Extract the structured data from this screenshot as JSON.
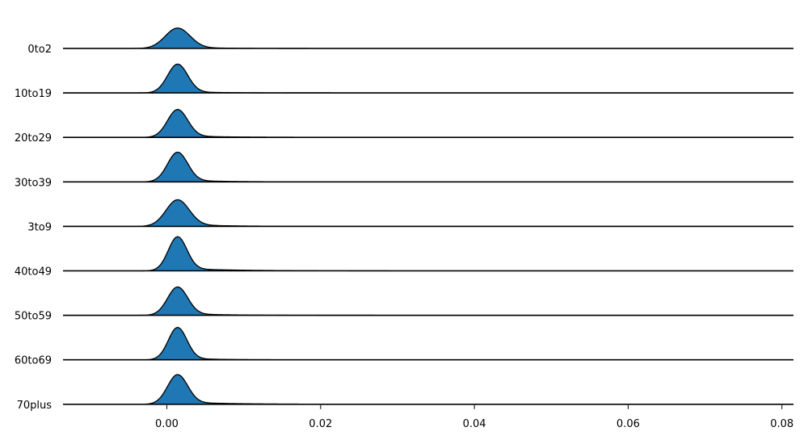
{
  "chart_data": {
    "type": "area",
    "subtype": "ridgeline",
    "title": "",
    "xlabel": "",
    "ylabel": "",
    "xlim": [
      -0.0135,
      0.0815
    ],
    "x_ticks": [
      0.0,
      0.02,
      0.04,
      0.06,
      0.08
    ],
    "x_tick_labels": [
      "0.00",
      "0.02",
      "0.04",
      "0.06",
      "0.08"
    ],
    "grid": false,
    "legend": "none",
    "fill_color": "#1f77b4",
    "line_color": "#000000",
    "series": [
      {
        "name": "0to2",
        "peak_x": 0.0014,
        "peak_height": 0.46,
        "sigma": 0.0016,
        "tail": 0.06,
        "tail_decay": 0.0045
      },
      {
        "name": "10to19",
        "peak_x": 0.0014,
        "peak_height": 0.65,
        "sigma": 0.0013,
        "tail": 0.06,
        "tail_decay": 0.004
      },
      {
        "name": "20to29",
        "peak_x": 0.0014,
        "peak_height": 0.63,
        "sigma": 0.0013,
        "tail": 0.07,
        "tail_decay": 0.005
      },
      {
        "name": "30to39",
        "peak_x": 0.0014,
        "peak_height": 0.67,
        "sigma": 0.0013,
        "tail": 0.07,
        "tail_decay": 0.0045
      },
      {
        "name": "3to9",
        "peak_x": 0.0014,
        "peak_height": 0.6,
        "sigma": 0.0015,
        "tail": 0.08,
        "tail_decay": 0.005
      },
      {
        "name": "40to49",
        "peak_x": 0.0014,
        "peak_height": 0.77,
        "sigma": 0.0012,
        "tail": 0.08,
        "tail_decay": 0.006
      },
      {
        "name": "50to59",
        "peak_x": 0.0014,
        "peak_height": 0.64,
        "sigma": 0.0013,
        "tail": 0.07,
        "tail_decay": 0.005
      },
      {
        "name": "60to69",
        "peak_x": 0.0014,
        "peak_height": 0.73,
        "sigma": 0.0012,
        "tail": 0.06,
        "tail_decay": 0.004
      },
      {
        "name": "70plus",
        "peak_x": 0.0014,
        "peak_height": 0.67,
        "sigma": 0.0013,
        "tail": 0.08,
        "tail_decay": 0.006
      }
    ]
  }
}
